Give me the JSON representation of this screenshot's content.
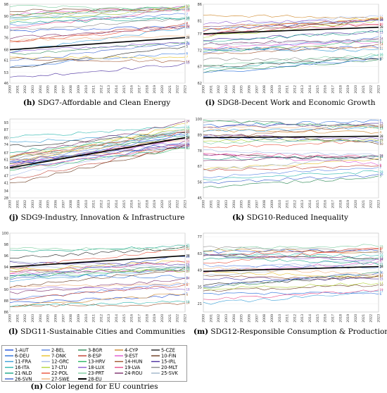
{
  "years": [
    "2000",
    "2001",
    "2002",
    "2003",
    "2004",
    "2005",
    "2006",
    "2007",
    "2008",
    "2009",
    "2010",
    "2011",
    "2012",
    "2013",
    "2014",
    "2015",
    "2016",
    "2017",
    "2018",
    "2019",
    "2020",
    "2021",
    "2022",
    "2023"
  ],
  "countries": [
    {
      "label": "1-AUT",
      "color": "#1f4fd8"
    },
    {
      "label": "2-BEL",
      "color": "#5b86e5"
    },
    {
      "label": "3-BGR",
      "color": "#2e8b57"
    },
    {
      "label": "4-CYP",
      "color": "#d08a2e"
    },
    {
      "label": "5-CZE",
      "color": "#222222"
    },
    {
      "label": "6-DEU",
      "color": "#2a6fdb"
    },
    {
      "label": "7-DNK",
      "color": "#e8c12a"
    },
    {
      "label": "8-ESP",
      "color": "#c0392b"
    },
    {
      "label": "9-EST",
      "color": "#e056d0"
    },
    {
      "label": "10-FIN",
      "color": "#6b3a1e"
    },
    {
      "label": "11-FRA",
      "color": "#3aa0d8"
    },
    {
      "label": "12-GRC",
      "color": "#a3b8e8"
    },
    {
      "label": "13-HRV",
      "color": "#28b463"
    },
    {
      "label": "14-HUN",
      "color": "#a0522d"
    },
    {
      "label": "15-IRL",
      "color": "#4b2fa0"
    },
    {
      "label": "16-ITA",
      "color": "#2db8b0"
    },
    {
      "label": "17-LTU",
      "color": "#b5d63b"
    },
    {
      "label": "18-LUX",
      "color": "#8e5bd0"
    },
    {
      "label": "19-LVA",
      "color": "#e84d8a"
    },
    {
      "label": "20-MLT",
      "color": "#8a8a8a"
    },
    {
      "label": "21-NLD",
      "color": "#17a589"
    },
    {
      "label": "22-POL",
      "color": "#e8503a"
    },
    {
      "label": "23-PRT",
      "color": "#7dcea0"
    },
    {
      "label": "24-ROU",
      "color": "#7b2d6b"
    },
    {
      "label": "25-SVK",
      "color": "#9fb5c8"
    },
    {
      "label": "26-SVN",
      "color": "#3a5fcd"
    },
    {
      "label": "27-SWE",
      "color": "#f0b07a"
    },
    {
      "label": "28-EU",
      "color": "#000000"
    }
  ],
  "chart_data": [
    {
      "type": "line",
      "caption_letter": "(h)",
      "caption_text": "SDG7-Affordable and Clean Energy",
      "yticks": [
        "46",
        "53",
        "61",
        "68",
        "76",
        "83",
        "90",
        "98"
      ],
      "ylim": [
        46,
        98
      ],
      "series_summary": {
        "EU_start": 68,
        "EU_end": 76,
        "max_series_end": 97,
        "min_series_end": 58
      }
    },
    {
      "type": "line",
      "caption_letter": "(i)",
      "caption_text": "SDG8-Decent Work and Economic Growth",
      "yticks": [
        "62",
        "67",
        "72",
        "77",
        "81",
        "86"
      ],
      "ylim": [
        62,
        86
      ],
      "series_summary": {
        "EU_start": 77,
        "EU_end": 79,
        "max_series_end": 84,
        "min_series_end": 69
      }
    },
    {
      "type": "line",
      "caption_letter": "(j)",
      "caption_text": "SDG9-Industry, Innovation & Infrastructure",
      "yticks": [
        "28",
        "34",
        "41",
        "47",
        "54",
        "61",
        "67",
        "74",
        "80",
        "87",
        "93"
      ],
      "ylim": [
        28,
        96
      ],
      "series_summary": {
        "EU_start": 54,
        "EU_end": 80,
        "max_series_end": 93,
        "min_series_end": 70
      }
    },
    {
      "type": "line",
      "caption_letter": "(k)",
      "caption_text": "SDG10-Reduced Inequality",
      "yticks": [
        "45",
        "56",
        "67",
        "78",
        "89",
        "100"
      ],
      "ylim": [
        45,
        100
      ],
      "series_summary": {
        "EU_start": 87,
        "EU_end": 88,
        "max_series_end": 100,
        "min_series_end": 58
      }
    },
    {
      "type": "line",
      "caption_letter": "(l)",
      "caption_text": "SDG11-Sustainable Cities and Communities",
      "yticks": [
        "86",
        "88",
        "90",
        "92",
        "94",
        "96",
        "98",
        "100"
      ],
      "ylim": [
        86,
        100
      ],
      "series_summary": {
        "EU_start": 94,
        "EU_end": 96,
        "max_series_end": 98,
        "min_series_end": 87
      }
    },
    {
      "type": "line",
      "caption_letter": "(m)",
      "caption_text": "SDG12-Responsible Consumption & Production",
      "yticks": [
        "21",
        "35",
        "49",
        "63",
        "77"
      ],
      "ylim": [
        14,
        80
      ],
      "series_summary": {
        "EU_start": 48,
        "EU_end": 52,
        "max_series_end": 71,
        "min_series_end": 28
      }
    }
  ],
  "legend_caption_letter": "(n)",
  "legend_caption_text": "Color legend for EU countries"
}
